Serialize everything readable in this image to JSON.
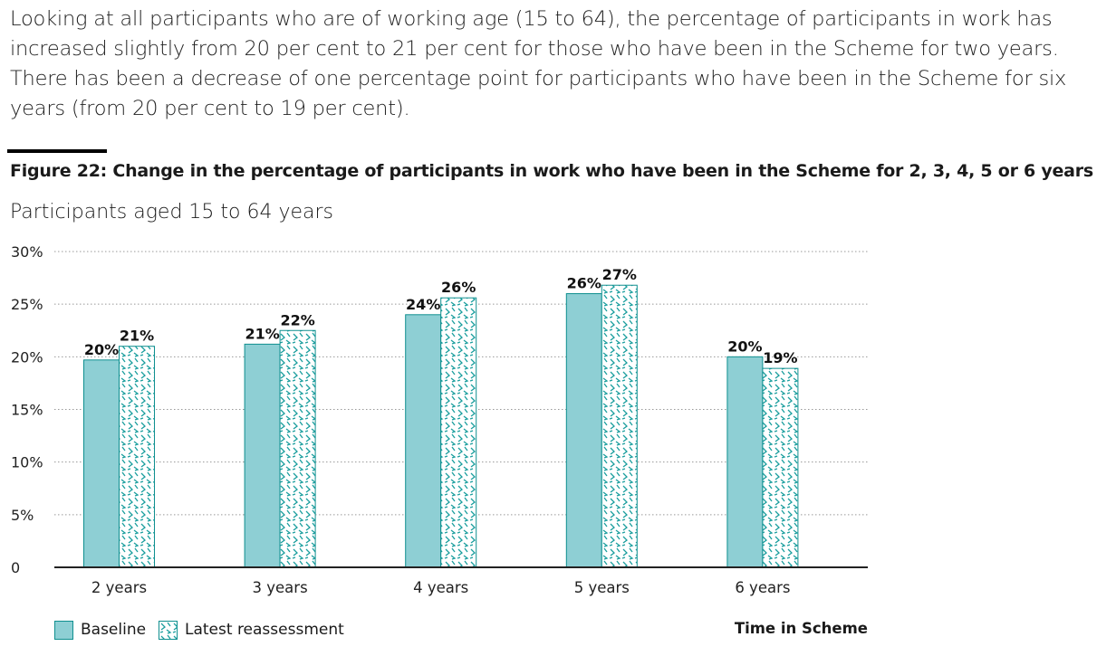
{
  "intro_text": "Looking at all participants who are of working age (15 to 64), the percentage of participants in work has increased slightly from 20 per cent to 21 per cent for those who have been in the Scheme for two years. There has been a decrease of one percentage point for participants who have been in the Scheme for six years (from 20 per cent to 19 per cent).",
  "colors": {
    "baseline": "#8ecfd4",
    "latest_pattern": "#1a9e9e",
    "border": "#0f8f8f",
    "grid": "#999999"
  },
  "chart_data": {
    "type": "bar",
    "title": "Figure 22: Change in the percentage of participants in work who have been in the Scheme for 2, 3, 4, 5 or 6 years",
    "subtitle": "Participants aged 15 to 64 years",
    "categories": [
      "2 years",
      "3 years",
      "4 years",
      "5 years",
      "6 years"
    ],
    "series": [
      {
        "name": "Baseline",
        "values": [
          19.7,
          21.2,
          24.0,
          26.0,
          20.0
        ],
        "labels": [
          "20%",
          "21%",
          "24%",
          "26%",
          "20%"
        ]
      },
      {
        "name": "Latest reassessment",
        "values": [
          21.0,
          22.5,
          25.6,
          26.8,
          18.9
        ],
        "labels": [
          "21%",
          "22%",
          "26%",
          "27%",
          "19%"
        ]
      }
    ],
    "xlabel": "Time in Scheme",
    "ylabel": "",
    "ylim": [
      0,
      30
    ],
    "yticks": [
      0,
      5,
      10,
      15,
      20,
      25,
      30
    ],
    "ytick_labels": [
      "0",
      "5%",
      "10%",
      "15%",
      "20%",
      "25%",
      "30%"
    ],
    "grid": true,
    "legend": "bottom-left"
  }
}
